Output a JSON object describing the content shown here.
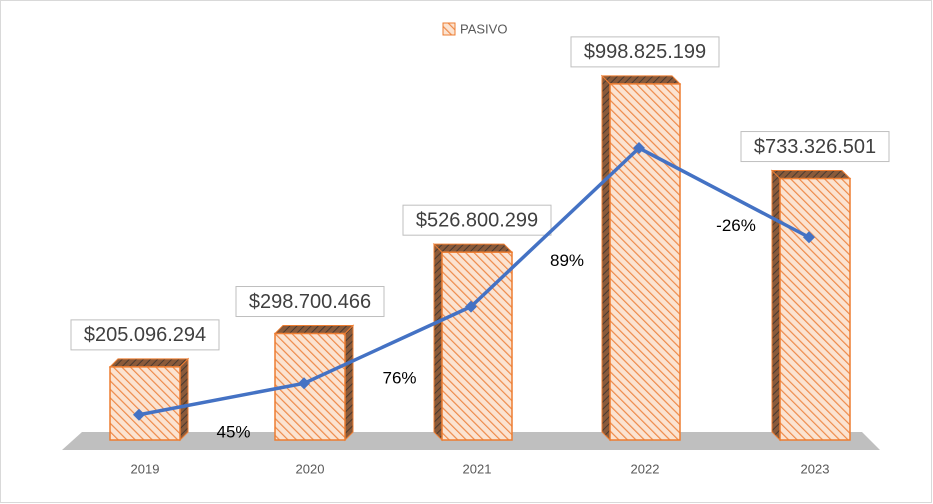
{
  "chart_data": {
    "type": "bar",
    "legend": "PASIVO",
    "categories": [
      "2019",
      "2020",
      "2021",
      "2022",
      "2023"
    ],
    "values": [
      205096294,
      298700466,
      526800299,
      998825199,
      733326501
    ],
    "value_labels": [
      "$205.096.294",
      "$298.700.466",
      "$526.800.299",
      "$998.825.199",
      "$733.326.501"
    ],
    "color": "#ed7d31",
    "ylim": [
      0,
      1150000000
    ],
    "line": {
      "axis": "y2",
      "color": "#4472c4"
    },
    "y2lim": [
      130000000,
      1350000000
    ],
    "growth": {
      "values": [
        45,
        76,
        89,
        -26
      ],
      "value_labels": [
        "45%",
        "76%",
        "89%",
        "-26%"
      ]
    }
  }
}
